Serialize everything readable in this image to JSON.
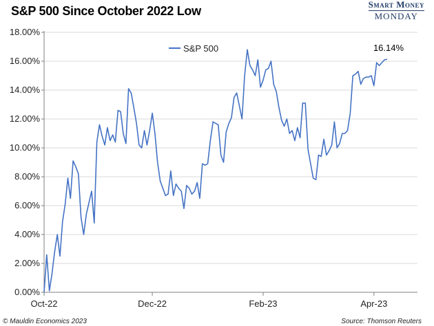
{
  "title": "S&P 500 Since October 2022 Low",
  "brand": {
    "line1": "Smart Money",
    "line2": "MONDAY"
  },
  "footer": {
    "left": "© Mauldin Economics 2023",
    "right": "Source: Thomson Reuters"
  },
  "colors": {
    "line": "#4472c4",
    "axis": "#7f7f7f",
    "grid": "#d9d9d9"
  },
  "chart_data": {
    "type": "line",
    "title": "S&P 500 Since October 2022 Low",
    "series": [
      {
        "name": "S&P 500",
        "values": [
          0.0,
          2.6,
          0.1,
          1.3,
          2.8,
          4.0,
          2.5,
          4.9,
          6.1,
          7.9,
          6.5,
          9.1,
          8.7,
          8.2,
          5.2,
          4.0,
          5.4,
          6.2,
          7.0,
          4.8,
          10.4,
          11.6,
          10.8,
          10.2,
          11.4,
          10.5,
          10.9,
          10.4,
          12.6,
          12.5,
          11.0,
          10.3,
          14.1,
          13.8,
          12.8,
          11.7,
          10.2,
          10.0,
          11.2,
          10.2,
          11.2,
          12.4,
          11.0,
          9.0,
          7.7,
          7.2,
          6.7,
          6.8,
          8.4,
          6.7,
          7.5,
          7.2,
          7.0,
          5.8,
          7.4,
          7.2,
          6.8,
          7.0,
          7.6,
          6.5,
          8.9,
          8.8,
          8.9,
          10.5,
          11.8,
          11.7,
          11.6,
          9.5,
          9.0,
          11.1,
          11.7,
          12.1,
          13.5,
          13.8,
          12.9,
          12.0,
          15.0,
          16.8,
          15.7,
          15.4,
          15.0,
          16.1,
          14.2,
          14.7,
          15.4,
          15.5,
          16.0,
          14.4,
          13.9,
          12.8,
          11.9,
          11.5,
          12.0,
          11.0,
          11.2,
          10.5,
          11.4,
          10.7,
          13.1,
          13.1,
          9.9,
          8.9,
          7.9,
          7.8,
          9.5,
          9.4,
          10.6,
          9.5,
          9.8,
          10.2,
          11.8,
          10.0,
          10.3,
          11.0,
          11.0,
          11.2,
          12.4,
          15.0,
          15.1,
          15.3,
          14.4,
          14.8,
          14.9,
          14.9,
          15.0,
          14.3,
          15.9,
          15.7,
          15.9,
          16.1,
          16.14
        ]
      }
    ],
    "x_ticks": [
      "Oct-22",
      "Dec-22",
      "Feb-23",
      "Apr-23"
    ],
    "x_tick_index": [
      0,
      41,
      83,
      125
    ],
    "y_ticks": [
      "0.00%",
      "2.00%",
      "4.00%",
      "6.00%",
      "8.00%",
      "10.00%",
      "12.00%",
      "14.00%",
      "16.00%",
      "18.00%"
    ],
    "ylim": [
      0,
      18
    ],
    "grid": "horizontal",
    "legend": "top-center",
    "annotation": "16.14%"
  }
}
